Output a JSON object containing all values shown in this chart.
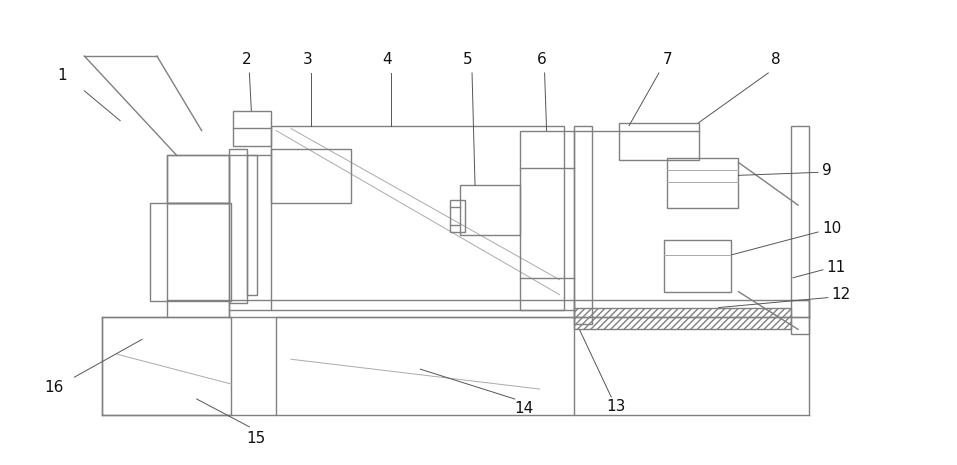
{
  "bg_color": "#ffffff",
  "lc": "#808080",
  "lc_purple": "#9988aa",
  "lc_green": "#88aa88",
  "lw": 1.0,
  "lw_thin": 0.7,
  "label_fs": 11,
  "label_color": "#111111",
  "fig_width": 9.57,
  "fig_height": 4.65,
  "dpi": 100
}
